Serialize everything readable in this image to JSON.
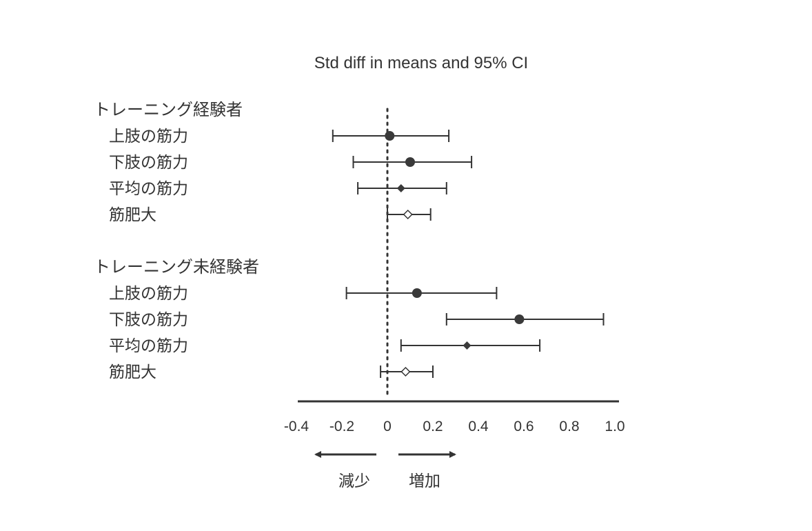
{
  "chart_data": {
    "type": "forest",
    "title": "Std diff in means and 95% CI",
    "xlim": [
      -0.4,
      1.0
    ],
    "x_ticks": [
      {
        "value": -0.4,
        "label": "-0.4"
      },
      {
        "value": -0.2,
        "label": "-0.2"
      },
      {
        "value": 0,
        "label": "0"
      },
      {
        "value": 0.2,
        "label": "0.2"
      },
      {
        "value": 0.4,
        "label": "0.4"
      },
      {
        "value": 0.6,
        "label": "0.6"
      },
      {
        "value": 0.8,
        "label": "0.8"
      },
      {
        "value": 1.0,
        "label": "1.0"
      }
    ],
    "reference_line": 0,
    "groups": [
      {
        "label": "トレーニング経験者",
        "rows": [
          {
            "label": "上肢の筋力",
            "estimate": 0.01,
            "lower": -0.24,
            "upper": 0.27,
            "marker": "circle"
          },
          {
            "label": "下肢の筋力",
            "estimate": 0.1,
            "lower": -0.15,
            "upper": 0.37,
            "marker": "circle"
          },
          {
            "label": "平均の筋力",
            "estimate": 0.06,
            "lower": -0.13,
            "upper": 0.26,
            "marker": "diamond-filled"
          },
          {
            "label": "筋肥大",
            "estimate": 0.09,
            "lower": 0.0,
            "upper": 0.19,
            "marker": "diamond-open"
          }
        ]
      },
      {
        "label": "トレーニング未経験者",
        "rows": [
          {
            "label": "上肢の筋力",
            "estimate": 0.13,
            "lower": -0.18,
            "upper": 0.48,
            "marker": "circle"
          },
          {
            "label": "下肢の筋力",
            "estimate": 0.58,
            "lower": 0.26,
            "upper": 0.95,
            "marker": "circle"
          },
          {
            "label": "平均の筋力",
            "estimate": 0.35,
            "lower": 0.06,
            "upper": 0.67,
            "marker": "diamond-filled"
          },
          {
            "label": "筋肥大",
            "estimate": 0.08,
            "lower": -0.03,
            "upper": 0.2,
            "marker": "diamond-open"
          }
        ]
      }
    ],
    "direction_labels": {
      "left": "減少",
      "right": "増加"
    },
    "colors": {
      "ink": "#333333",
      "marker": "#3a3a3a"
    }
  }
}
